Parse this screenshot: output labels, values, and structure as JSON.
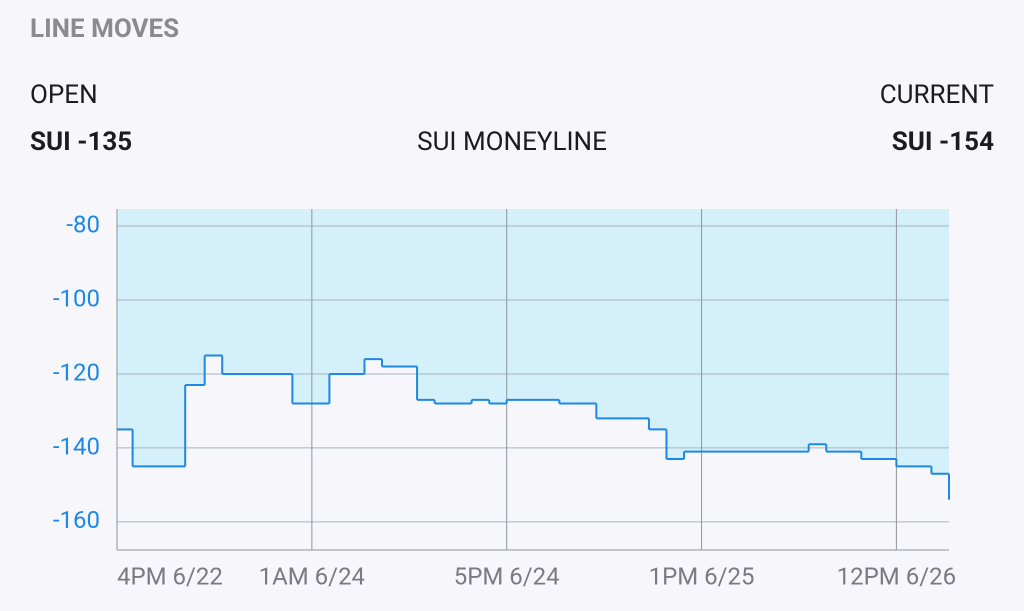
{
  "header": {
    "title": "LINE MOVES",
    "open_label": "OPEN",
    "open_value": "SUI -135",
    "market": "SUI MONEYLINE",
    "current_label": "CURRENT",
    "current_value": "SUI -154"
  },
  "chart_data": {
    "type": "line",
    "step": true,
    "fill_above": true,
    "x": [
      0,
      0.08,
      0.35,
      0.45,
      0.54,
      0.9,
      1.09,
      1.27,
      1.36,
      1.54,
      1.63,
      1.82,
      1.91,
      2.0,
      2.27,
      2.46,
      2.73,
      2.82,
      2.91,
      3.55,
      3.64,
      3.82,
      4.0,
      4.18,
      4.27
    ],
    "values": [
      -135,
      -145,
      -123,
      -115,
      -120,
      -128,
      -120,
      -116,
      -118,
      -127,
      -128,
      -127,
      -128,
      -127,
      -128,
      -132,
      -135,
      -143,
      -141,
      -139,
      -141,
      -143,
      -145,
      -147,
      -154
    ],
    "color": "#1e88e5",
    "fill_color": "#d3f0fb",
    "xlim": [
      0,
      4.27
    ],
    "xticks": [
      {
        "value": 0,
        "label": "4PM 6/22"
      },
      {
        "value": 1,
        "label": "1AM 6/24"
      },
      {
        "value": 2,
        "label": "5PM 6/24"
      },
      {
        "value": 3,
        "label": "1PM 6/25"
      },
      {
        "value": 4,
        "label": "12PM 6/26"
      }
    ],
    "ylim": [
      -167.6,
      -75.4
    ],
    "yticks": [
      -80,
      -100,
      -120,
      -140,
      -160
    ],
    "grid": true
  }
}
